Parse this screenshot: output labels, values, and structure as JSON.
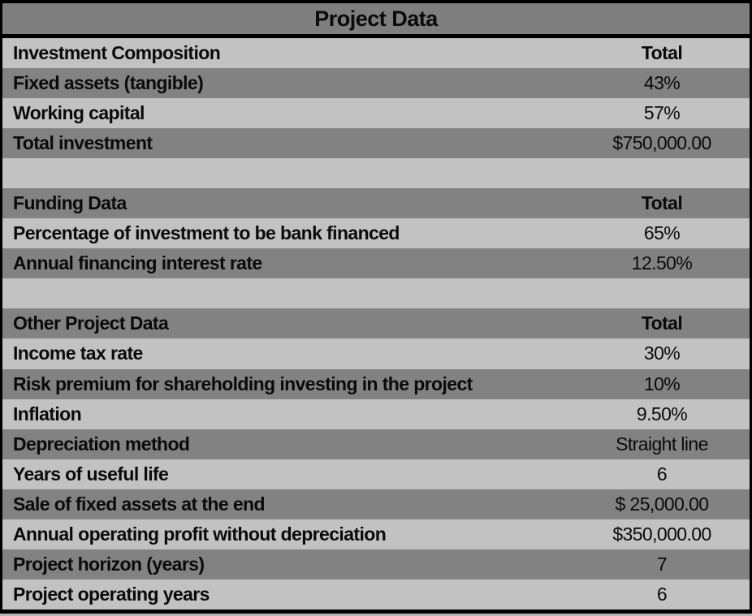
{
  "table": {
    "title": "Project Data",
    "rows": [
      {
        "label": "Investment Composition",
        "value": "Total",
        "type": "section-header"
      },
      {
        "label": "Fixed assets (tangible)",
        "value": "43%",
        "type": "data"
      },
      {
        "label": "Working capital",
        "value": "57%",
        "type": "data"
      },
      {
        "label": "Total investment",
        "value": "$750,000.00",
        "type": "data"
      },
      {
        "label": "",
        "value": "",
        "type": "blank"
      },
      {
        "label": "Funding Data",
        "value": "Total",
        "type": "section-header"
      },
      {
        "label": "Percentage of investment to be bank financed",
        "value": "65%",
        "type": "data"
      },
      {
        "label": "Annual financing interest rate",
        "value": "12.50%",
        "type": "data"
      },
      {
        "label": "",
        "value": "",
        "type": "blank"
      },
      {
        "label": "Other Project Data",
        "value": "Total",
        "type": "section-header"
      },
      {
        "label": "Income tax rate",
        "value": "30%",
        "type": "data"
      },
      {
        "label": "Risk premium for shareholding investing in the project",
        "value": "10%",
        "type": "data"
      },
      {
        "label": "Inflation",
        "value": "9.50%",
        "type": "data"
      },
      {
        "label": "Depreciation method",
        "value": "Straight line",
        "type": "data"
      },
      {
        "label": "Years of useful life",
        "value": "6",
        "type": "data"
      },
      {
        "label": "Sale of fixed assets at the end",
        "value": "$ 25,000.00",
        "type": "data"
      },
      {
        "label": "Annual operating profit without depreciation",
        "value": "$350,000.00",
        "type": "data"
      },
      {
        "label": "Project horizon (years)",
        "value": "7",
        "type": "data"
      },
      {
        "label": "Project operating years",
        "value": "6",
        "type": "data"
      }
    ]
  },
  "colors": {
    "title_bg": "#7E7E7E",
    "row_dark_bg": "#828282",
    "row_light_bg": "#C2C2C2",
    "border": "#000000",
    "text": "#0A0A0A",
    "page_bg": "#B5B5B5"
  }
}
